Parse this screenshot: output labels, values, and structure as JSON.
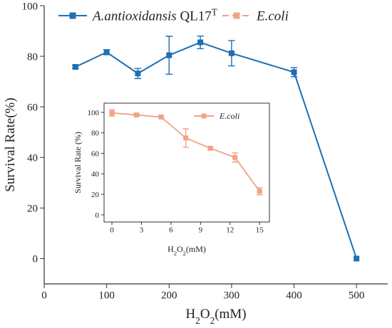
{
  "chart_data": [
    {
      "type": "line",
      "xlabel": "H2O2(mM)",
      "ylabel": "Survival Rate(%)",
      "xlim": [
        0,
        550
      ],
      "xticks": [
        0,
        100,
        200,
        300,
        400,
        500
      ],
      "ylim": [
        -10,
        100
      ],
      "yticks": [
        0,
        20,
        40,
        60,
        80,
        100
      ],
      "x": [
        50,
        100,
        150,
        200,
        250,
        300,
        400,
        500
      ],
      "series": [
        {
          "name": "A.antioxidansis QL17T",
          "color": "#1f6fb2",
          "values": [
            75.8,
            81.6,
            73.2,
            80.4,
            85.5,
            81.2,
            73.7,
            0
          ],
          "errors": [
            0.6,
            1,
            2,
            7.5,
            2.5,
            5,
            1.8,
            0
          ]
        }
      ]
    },
    {
      "type": "line",
      "xlabel": "H2O2(mM)",
      "ylabel": "Survival Rate (%)",
      "xlim": [
        -0.8,
        16
      ],
      "xticks": [
        0,
        3,
        6,
        9,
        12,
        15
      ],
      "ylim": [
        -7,
        109
      ],
      "yticks": [
        0,
        20,
        40,
        60,
        80,
        100
      ],
      "x": [
        0,
        2.5,
        5,
        7.5,
        10,
        12.5,
        15
      ],
      "series": [
        {
          "name": "E.coli",
          "color": "#f2a285",
          "values": [
            99.5,
            97.5,
            95.5,
            75,
            65,
            56,
            23
          ],
          "errors": [
            3,
            1,
            1,
            9,
            1,
            4.5,
            3.5
          ]
        }
      ]
    }
  ]
}
